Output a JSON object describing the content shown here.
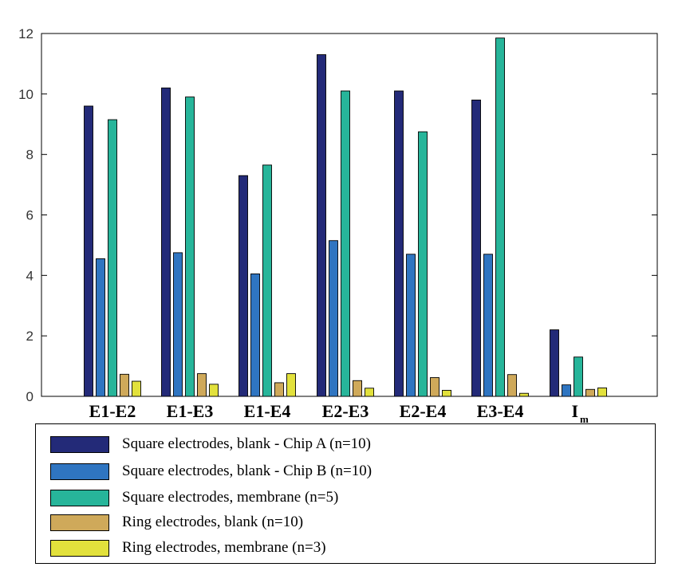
{
  "chart_data": {
    "type": "bar",
    "categories": [
      "E1-E2",
      "E1-E3",
      "E1-E4",
      "E2-E3",
      "E2-E4",
      "E3-E4",
      "I_m"
    ],
    "category_display": [
      {
        "main": "E1-E2",
        "sub": ""
      },
      {
        "main": "E1-E3",
        "sub": ""
      },
      {
        "main": "E1-E4",
        "sub": ""
      },
      {
        "main": "E2-E3",
        "sub": ""
      },
      {
        "main": "E2-E4",
        "sub": ""
      },
      {
        "main": "E3-E4",
        "sub": ""
      },
      {
        "main": "I",
        "sub": "m"
      }
    ],
    "series": [
      {
        "name": "Square electrodes, blank - Chip A (n=10)",
        "color": "#232a78",
        "values": [
          9.6,
          10.2,
          7.3,
          11.3,
          10.1,
          9.8,
          2.2
        ]
      },
      {
        "name": "Square electrodes, blank - Chip B (n=10)",
        "color": "#2f75c1",
        "values": [
          4.55,
          4.75,
          4.05,
          5.15,
          4.7,
          4.7,
          0.38
        ]
      },
      {
        "name": "Square electrodes, membrane (n=5)",
        "color": "#27b59a",
        "values": [
          9.15,
          9.9,
          7.65,
          10.1,
          8.75,
          11.85,
          1.3
        ]
      },
      {
        "name": "Ring electrodes, blank (n=10)",
        "color": "#cfa95a",
        "values": [
          0.73,
          0.75,
          0.45,
          0.52,
          0.62,
          0.72,
          0.23
        ]
      },
      {
        "name": "Ring electrodes, membrane (n=3)",
        "color": "#e2e13c",
        "values": [
          0.5,
          0.4,
          0.75,
          0.27,
          0.2,
          0.1,
          0.28
        ]
      }
    ],
    "ylim": [
      0,
      12
    ],
    "yticks": [
      "0",
      "2",
      "4",
      "6",
      "8",
      "10",
      "12"
    ],
    "title": "",
    "xlabel": "",
    "ylabel": "",
    "grid": false,
    "legend_position": "bottom"
  }
}
